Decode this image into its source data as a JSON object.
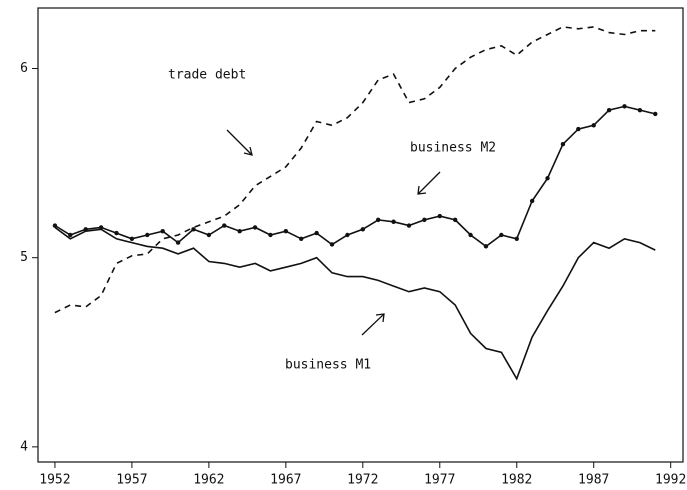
{
  "chart_data": {
    "type": "line",
    "x": [
      1952,
      1953,
      1954,
      1955,
      1956,
      1957,
      1958,
      1959,
      1960,
      1961,
      1962,
      1963,
      1964,
      1965,
      1966,
      1967,
      1968,
      1969,
      1970,
      1971,
      1972,
      1973,
      1974,
      1975,
      1976,
      1977,
      1978,
      1979,
      1980,
      1981,
      1982,
      1983,
      1984,
      1985,
      1986,
      1987,
      1988,
      1989,
      1990,
      1991
    ],
    "series": [
      {
        "name": "trade debt",
        "color": "#111111",
        "style": "dashed",
        "markers": false,
        "values": [
          4.71,
          4.75,
          4.74,
          4.8,
          4.97,
          5.01,
          5.02,
          5.1,
          5.12,
          5.16,
          5.19,
          5.22,
          5.28,
          5.38,
          5.43,
          5.48,
          5.58,
          5.72,
          5.7,
          5.74,
          5.82,
          5.94,
          5.97,
          5.82,
          5.84,
          5.9,
          6.0,
          6.06,
          6.1,
          6.12,
          6.07,
          6.14,
          6.18,
          6.22,
          6.21,
          6.22,
          6.19,
          6.18,
          6.2,
          6.2
        ]
      },
      {
        "name": "business M2",
        "color": "#111111",
        "style": "solid",
        "markers": true,
        "values": [
          5.17,
          5.12,
          5.15,
          5.16,
          5.13,
          5.1,
          5.12,
          5.14,
          5.08,
          5.15,
          5.12,
          5.17,
          5.14,
          5.16,
          5.12,
          5.14,
          5.1,
          5.13,
          5.07,
          5.12,
          5.15,
          5.2,
          5.19,
          5.17,
          5.2,
          5.22,
          5.2,
          5.12,
          5.06,
          5.12,
          5.1,
          5.3,
          5.42,
          5.6,
          5.68,
          5.7,
          5.78,
          5.8,
          5.78,
          5.76
        ]
      },
      {
        "name": "business M1",
        "color": "#111111",
        "style": "solid",
        "markers": false,
        "values": [
          5.16,
          5.1,
          5.14,
          5.15,
          5.1,
          5.08,
          5.06,
          5.05,
          5.02,
          5.05,
          4.98,
          4.97,
          4.95,
          4.97,
          4.93,
          4.95,
          4.97,
          5.0,
          4.92,
          4.9,
          4.9,
          4.88,
          4.85,
          4.82,
          4.84,
          4.82,
          4.75,
          4.6,
          4.52,
          4.5,
          4.36,
          4.58,
          4.72,
          4.85,
          5.0,
          5.08,
          5.05,
          5.1,
          5.08,
          5.04
        ]
      }
    ],
    "xlim": [
      1950.9,
      1992.8
    ],
    "xticks": [
      1952,
      1957,
      1962,
      1967,
      1972,
      1977,
      1982,
      1987,
      1992
    ],
    "ylim": [
      3.92,
      6.32
    ],
    "yticks": [
      4,
      5,
      6
    ],
    "grid": false
  }
}
